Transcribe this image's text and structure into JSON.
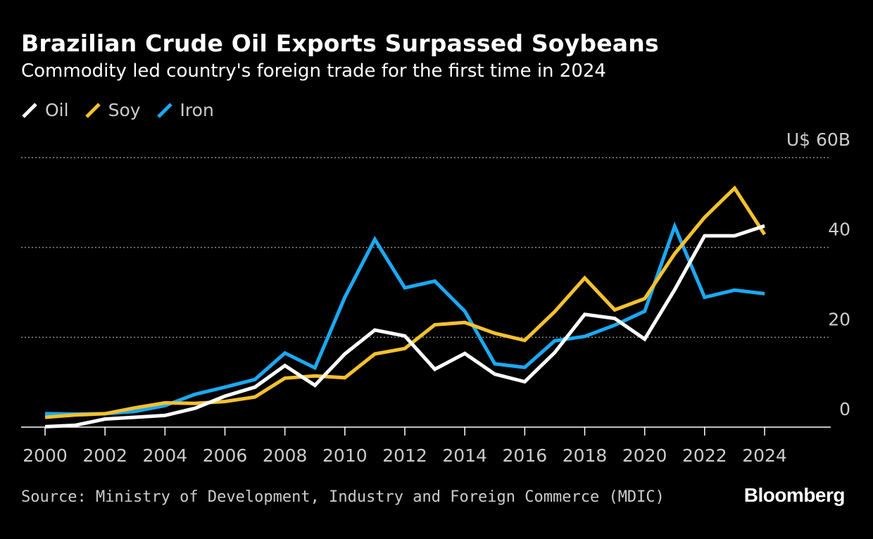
{
  "header": {
    "title": "Brazilian Crude Oil Exports Surpassed Soybeans",
    "subtitle": "Commodity led country's foreign trade for the first time in 2024"
  },
  "footer": {
    "source": "Source: Ministry of Development, Industry and Foreign Commerce (MDIC)",
    "brand": "Bloomberg"
  },
  "chart_data": {
    "type": "line",
    "title": "Brazilian Crude Oil Exports Surpassed Soybeans",
    "subtitle": "Commodity led country's foreign trade for the first time in 2024",
    "xlabel": "",
    "ylabel": "",
    "x": [
      2000,
      2001,
      2002,
      2003,
      2004,
      2005,
      2006,
      2007,
      2008,
      2009,
      2010,
      2011,
      2012,
      2013,
      2014,
      2015,
      2016,
      2017,
      2018,
      2019,
      2020,
      2021,
      2022,
      2023,
      2024
    ],
    "xticks": [
      2000,
      2002,
      2004,
      2006,
      2008,
      2010,
      2012,
      2014,
      2016,
      2018,
      2020,
      2022,
      2024
    ],
    "xtick_labels": [
      "2000",
      "2002",
      "2004",
      "2006",
      "2008",
      "2010",
      "2012",
      "2014",
      "2016",
      "2018",
      "2020",
      "2022",
      "2024"
    ],
    "ylim": [
      0,
      60
    ],
    "yticks": [
      0,
      20,
      40,
      60
    ],
    "ytick_labels": [
      "0",
      "20",
      "40",
      "U$ 60B"
    ],
    "grid": true,
    "legend_position": "top-left",
    "series": [
      {
        "name": "Oil",
        "color": "#ffffff",
        "values": [
          0.1,
          0.4,
          1.8,
          2.2,
          2.6,
          4.2,
          6.9,
          8.9,
          13.7,
          9.3,
          16.3,
          21.6,
          20.3,
          12.9,
          16.4,
          11.8,
          10.1,
          16.6,
          25.1,
          24.2,
          19.6,
          30.6,
          42.6,
          42.6,
          44.8
        ]
      },
      {
        "name": "Soy",
        "color": "#f5c12f",
        "values": [
          2.2,
          2.7,
          3.0,
          4.3,
          5.4,
          5.3,
          5.7,
          6.7,
          10.9,
          11.4,
          11.0,
          16.3,
          17.5,
          22.8,
          23.3,
          20.9,
          19.3,
          25.7,
          33.2,
          26.1,
          28.6,
          38.6,
          46.7,
          53.2,
          42.9
        ]
      },
      {
        "name": "Iron",
        "color": "#1ba9f2",
        "values": [
          3.0,
          2.9,
          3.0,
          3.5,
          4.8,
          7.3,
          8.9,
          10.6,
          16.5,
          13.2,
          28.9,
          41.8,
          31.0,
          32.5,
          25.8,
          14.1,
          13.3,
          19.2,
          20.2,
          22.7,
          25.8,
          44.7,
          28.9,
          30.5,
          29.7
        ]
      }
    ]
  }
}
